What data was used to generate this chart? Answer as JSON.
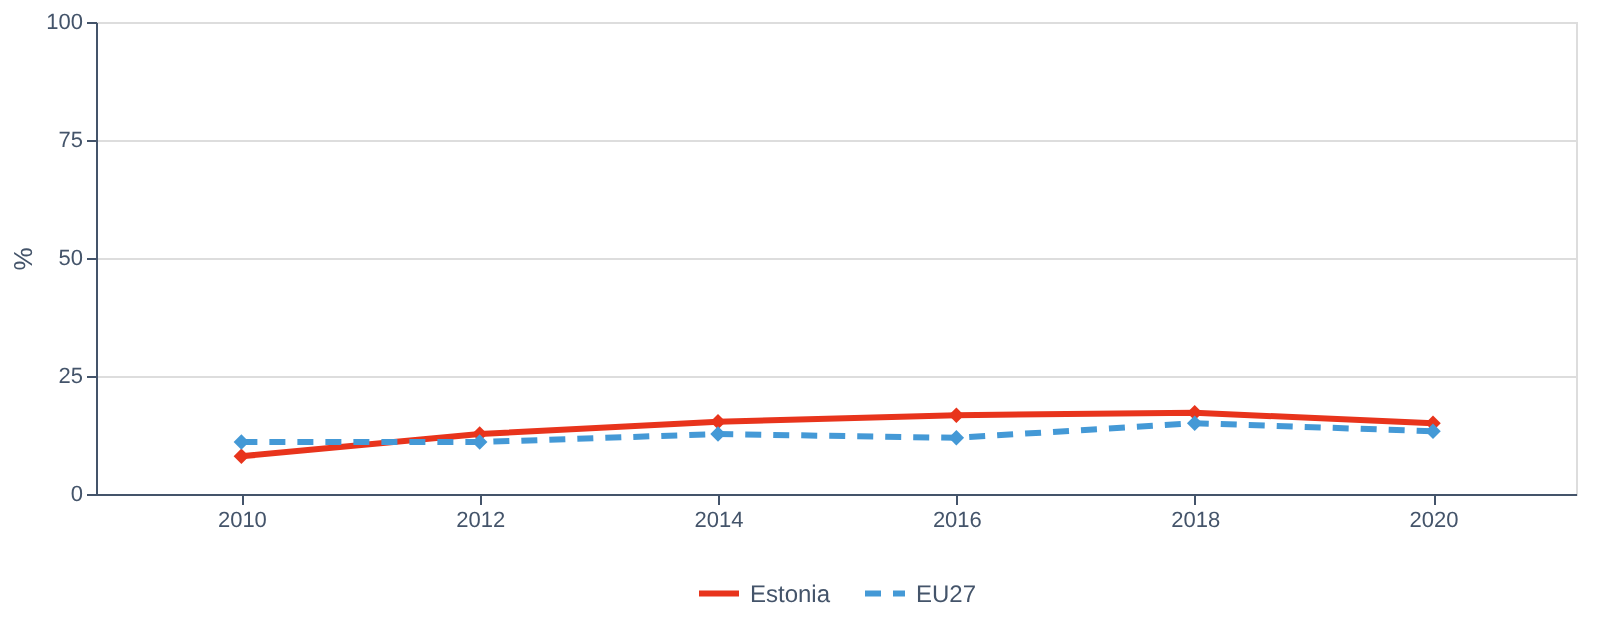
{
  "chart_data": {
    "type": "line",
    "ylabel": "%",
    "x": [
      2010,
      2012,
      2014,
      2016,
      2018,
      2020
    ],
    "series": [
      {
        "name": "Estonia",
        "color": "#e8341c",
        "values": [
          8,
          12.7,
          15.3,
          16.7,
          17.2,
          15
        ],
        "line_style": "solid"
      },
      {
        "name": "EU27",
        "color": "#4499d6",
        "values": [
          11,
          11,
          12.7,
          11.9,
          15,
          13.3
        ],
        "line_style": "dashed"
      }
    ],
    "xlim": [
      2008.78,
      2021.2
    ],
    "xticks": [
      2010,
      2012,
      2014,
      2016,
      2018,
      2020
    ],
    "ylim": [
      0,
      100
    ],
    "yticks": [
      0,
      25,
      50,
      75,
      100
    ],
    "grid": "y",
    "legend": "bottom",
    "marker": "diamond"
  }
}
